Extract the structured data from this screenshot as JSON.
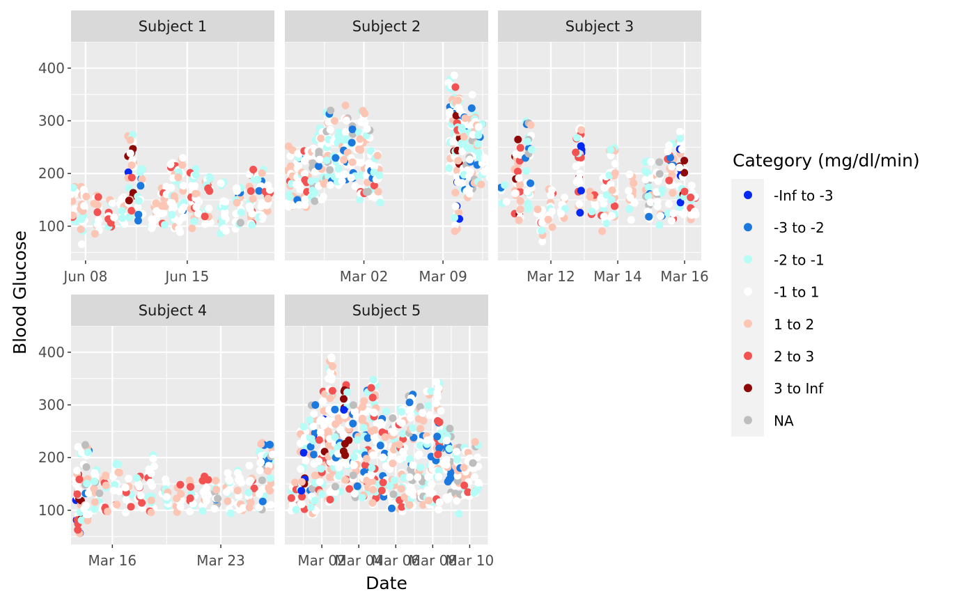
{
  "chart_data": {
    "type": "scatter",
    "xlabel": "Date",
    "ylabel": "Blood Glucose",
    "ylim": [
      35,
      450
    ],
    "y_ticks": [
      100,
      200,
      300,
      400
    ],
    "grid": true,
    "legend_position": "right",
    "legend": {
      "title": "Category (mg/dl/min)",
      "items": [
        {
          "label": "-Inf to -3",
          "color": "#0629F2"
        },
        {
          "label": "-3 to -2",
          "color": "#1A78DF"
        },
        {
          "label": "-2 to -1",
          "color": "#B6FCF7"
        },
        {
          "label": "-1 to 1",
          "color": "#FFFFFF"
        },
        {
          "label": "1 to 2",
          "color": "#FCC5B4"
        },
        {
          "label": "2 to 3",
          "color": "#F25252"
        },
        {
          "label": "3 to Inf",
          "color": "#8E0808"
        },
        {
          "label": "NA",
          "color": "#BEBEBE"
        }
      ]
    },
    "panels": [
      {
        "title": "Subject 1",
        "xlim": [
          "2015-06-07",
          "2015-06-21"
        ],
        "ticks": [
          {
            "value": "2015-06-08",
            "label": "Jun 08"
          },
          {
            "value": "2015-06-15",
            "label": "Jun 15"
          }
        ],
        "clusters": [
          [
            "2015-06-07T04:00",
            95,
            175,
            3
          ],
          [
            "2015-06-07T20:00",
            65,
            180,
            3
          ],
          [
            "2015-06-08T18:00",
            85,
            170,
            3
          ],
          [
            "2015-06-09T18:00",
            90,
            165,
            3
          ],
          [
            "2015-06-10T14:00",
            85,
            160,
            1
          ],
          [
            "2015-06-11T03:00",
            110,
            275,
            6
          ],
          [
            "2015-06-11T19:00",
            110,
            210,
            2
          ],
          [
            "2015-06-12T17:00",
            95,
            165,
            3
          ],
          [
            "2015-06-13T10:00",
            100,
            180,
            3
          ],
          [
            "2015-06-14T00:00",
            95,
            225,
            3
          ],
          [
            "2015-06-14T14:00",
            85,
            230,
            2
          ],
          [
            "2015-06-15T10:00",
            95,
            210,
            3
          ],
          [
            "2015-06-15T18:00",
            120,
            165,
            1
          ],
          [
            "2015-06-16T10:00",
            95,
            200,
            3
          ],
          [
            "2015-06-17T12:00",
            85,
            190,
            4
          ],
          [
            "2015-06-18T13:00",
            95,
            200,
            4
          ],
          [
            "2015-06-19T10:00",
            100,
            215,
            3
          ],
          [
            "2015-06-20T01:00",
            110,
            210,
            2
          ],
          [
            "2015-06-20T12:00",
            120,
            180,
            3
          ]
        ]
      },
      {
        "title": "Subject 2",
        "xlim": [
          "2016-02-24",
          "2016-03-13"
        ],
        "ticks": [
          {
            "value": "2016-03-02",
            "label": "Mar 02"
          },
          {
            "value": "2016-03-09",
            "label": "Mar 09"
          }
        ],
        "clusters": [
          [
            "2016-02-24T12:00",
            130,
            255,
            3
          ],
          [
            "2016-02-25T06:00",
            140,
            245,
            4
          ],
          [
            "2016-02-25T20:00",
            130,
            250,
            3
          ],
          [
            "2016-02-26T14:00",
            145,
            270,
            4
          ],
          [
            "2016-02-27T06:00",
            150,
            290,
            4
          ],
          [
            "2016-02-27T22:00",
            160,
            325,
            4
          ],
          [
            "2016-02-28T14:00",
            170,
            300,
            2
          ],
          [
            "2016-02-29T08:00",
            185,
            330,
            4
          ],
          [
            "2016-03-01T02:00",
            175,
            300,
            4
          ],
          [
            "2016-03-01T20:00",
            140,
            320,
            3
          ],
          [
            "2016-03-02T12:00",
            150,
            290,
            4
          ],
          [
            "2016-03-03T04:00",
            140,
            240,
            3
          ],
          [
            "2016-03-09T18:00",
            200,
            400,
            2
          ],
          [
            "2016-03-10T06:00",
            90,
            370,
            6
          ],
          [
            "2016-03-10T22:00",
            150,
            330,
            4
          ],
          [
            "2016-03-11T14:00",
            160,
            350,
            4
          ],
          [
            "2016-03-12T06:00",
            175,
            300,
            4
          ],
          [
            "2016-03-12T22:00",
            190,
            230,
            1
          ]
        ]
      },
      {
        "title": "Subject 3",
        "xlim": [
          "2016-03-10T10:00",
          "2016-03-16T12:00"
        ],
        "ticks": [
          {
            "value": "2016-03-12",
            "label": "Mar 12"
          },
          {
            "value": "2016-03-14",
            "label": "Mar 14"
          },
          {
            "value": "2016-03-16",
            "label": "Mar 16"
          }
        ],
        "clusters": [
          [
            "2016-03-10T14:00",
            140,
            180,
            2
          ],
          [
            "2016-03-11T00:00",
            110,
            270,
            7
          ],
          [
            "2016-03-11T08:00",
            120,
            300,
            4
          ],
          [
            "2016-03-11T16:00",
            60,
            140,
            3
          ],
          [
            "2016-03-12T00:00",
            90,
            175,
            3
          ],
          [
            "2016-03-12T08:00",
            110,
            160,
            1
          ],
          [
            "2016-03-12T20:00",
            120,
            290,
            6
          ],
          [
            "2016-03-13T06:00",
            120,
            170,
            3
          ],
          [
            "2016-03-13T14:00",
            90,
            200,
            3
          ],
          [
            "2016-03-13T20:00",
            100,
            250,
            3
          ],
          [
            "2016-03-14T10:00",
            110,
            200,
            3
          ],
          [
            "2016-03-14T22:00",
            105,
            240,
            4
          ],
          [
            "2016-03-15T06:00",
            100,
            225,
            4
          ],
          [
            "2016-03-15T14:00",
            110,
            265,
            5
          ],
          [
            "2016-03-15T22:00",
            120,
            280,
            6
          ],
          [
            "2016-03-16T06:00",
            110,
            185,
            3
          ]
        ]
      },
      {
        "title": "Subject 4",
        "xlim": [
          "2016-03-13T08:00",
          "2016-03-26T11:00"
        ],
        "ticks": [
          {
            "value": "2016-03-16",
            "label": "Mar 16"
          },
          {
            "value": "2016-03-23",
            "label": "Mar 23"
          }
        ],
        "clusters": [
          [
            "2016-03-13T20:00",
            50,
            230,
            6
          ],
          [
            "2016-03-14T08:00",
            80,
            230,
            4
          ],
          [
            "2016-03-15T00:00",
            90,
            180,
            4
          ],
          [
            "2016-03-15T12:00",
            90,
            170,
            3
          ],
          [
            "2016-03-16T06:00",
            95,
            190,
            3
          ],
          [
            "2016-03-17T00:00",
            90,
            165,
            3
          ],
          [
            "2016-03-17T18:00",
            95,
            170,
            3
          ],
          [
            "2016-03-18T12:00",
            90,
            205,
            3
          ],
          [
            "2016-03-19T10:00",
            95,
            160,
            3
          ],
          [
            "2016-03-20T06:00",
            95,
            150,
            3
          ],
          [
            "2016-03-21T04:00",
            95,
            160,
            3
          ],
          [
            "2016-03-22T00:00",
            95,
            170,
            3
          ],
          [
            "2016-03-22T18:00",
            100,
            160,
            4
          ],
          [
            "2016-03-23T12:00",
            90,
            175,
            3
          ],
          [
            "2016-03-24T06:00",
            95,
            180,
            3
          ],
          [
            "2016-03-25T00:00",
            100,
            185,
            3
          ],
          [
            "2016-03-25T16:00",
            100,
            230,
            4
          ],
          [
            "2016-03-26T04:00",
            110,
            230,
            4
          ]
        ]
      },
      {
        "title": "Subject 5",
        "xlim": [
          "2016-02-29T00:00",
          "2016-03-11T00:00"
        ],
        "ticks": [
          {
            "value": "2016-03-02",
            "label": "Mar 02"
          },
          {
            "value": "2016-03-04",
            "label": "Mar 04"
          },
          {
            "value": "2016-03-06",
            "label": "Mar 06"
          },
          {
            "value": "2016-03-08",
            "label": "Mar 08"
          },
          {
            "value": "2016-03-10",
            "label": "Mar 10"
          }
        ],
        "clusters": [
          [
            "2016-02-29T12:00",
            90,
            160,
            3
          ],
          [
            "2016-03-01T00:00",
            100,
            260,
            6
          ],
          [
            "2016-03-01T12:00",
            90,
            300,
            4
          ],
          [
            "2016-03-02T00:00",
            130,
            330,
            6
          ],
          [
            "2016-03-02T12:00",
            110,
            400,
            3
          ],
          [
            "2016-03-02T21:00",
            130,
            300,
            4
          ],
          [
            "2016-03-03T08:00",
            140,
            340,
            6
          ],
          [
            "2016-03-03T20:00",
            120,
            300,
            4
          ],
          [
            "2016-03-04T08:00",
            120,
            330,
            5
          ],
          [
            "2016-03-04T20:00",
            110,
            360,
            3
          ],
          [
            "2016-03-05T08:00",
            120,
            290,
            5
          ],
          [
            "2016-03-05T20:00",
            100,
            280,
            4
          ],
          [
            "2016-03-06T08:00",
            90,
            300,
            3
          ],
          [
            "2016-03-06T20:00",
            100,
            320,
            4
          ],
          [
            "2016-03-07T08:00",
            110,
            300,
            4
          ],
          [
            "2016-03-07T20:00",
            110,
            330,
            2
          ],
          [
            "2016-03-08T08:00",
            100,
            345,
            5
          ],
          [
            "2016-03-08T20:00",
            110,
            260,
            4
          ],
          [
            "2016-03-09T08:00",
            90,
            230,
            4
          ],
          [
            "2016-03-09T20:00",
            120,
            220,
            3
          ],
          [
            "2016-03-10T08:00",
            130,
            240,
            4
          ]
        ]
      }
    ]
  }
}
